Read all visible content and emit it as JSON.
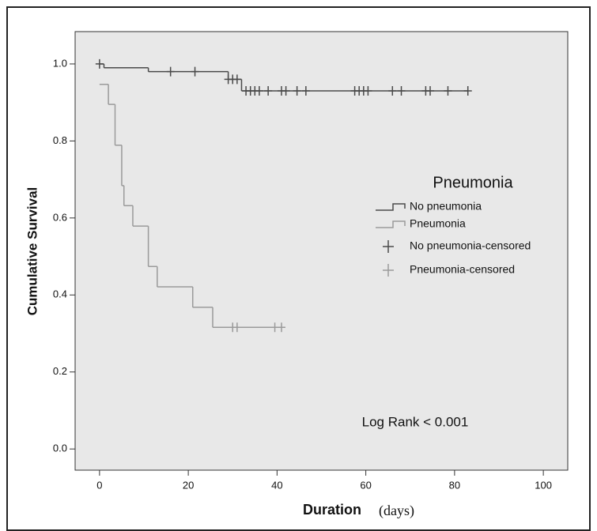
{
  "chart_data": {
    "type": "km",
    "y_label": "Cumulative Survival",
    "x_label": "Duration",
    "x_unit": "(days)",
    "legend_title": "Pneumonia",
    "annotation": "Log Rank < 0.001",
    "xlim": [
      -5.5,
      105.5
    ],
    "ylim": [
      -0.055,
      1.084
    ],
    "xticks": [
      0,
      20,
      40,
      60,
      80,
      100
    ],
    "yticks": [
      {
        "value": 0,
        "label": "0.0"
      },
      0.2,
      0.4,
      0.6,
      0.8,
      {
        "value": 1,
        "label": "1.0"
      }
    ],
    "series": [
      {
        "name": "No pneumonia",
        "color": "#4a4a4a",
        "x": [
          0,
          1,
          11,
          29,
          32,
          83
        ],
        "values": [
          1.0,
          0.99,
          0.98,
          0.96,
          0.93,
          0.93
        ]
      },
      {
        "name": "Pneumonia",
        "color": "#9a9a9a",
        "x": [
          0,
          2,
          3.5,
          5,
          5.5,
          7.5,
          11,
          13,
          21,
          25.5,
          41
        ],
        "values": [
          0.947,
          0.895,
          0.789,
          0.684,
          0.632,
          0.579,
          0.474,
          0.421,
          0.368,
          0.316,
          0.316
        ]
      }
    ],
    "censored": [
      {
        "name": "No pneumonia-censored",
        "color": "#4a4a4a",
        "x": [
          0,
          16,
          21.5,
          29,
          30,
          31,
          33,
          34,
          35,
          36,
          38,
          41,
          42,
          44.5,
          46.5,
          57.5,
          58.5,
          59.5,
          60.5,
          66,
          68,
          73.5,
          74.5,
          78.5,
          83
        ],
        "values": [
          1.0,
          0.98,
          0.98,
          0.96,
          0.96,
          0.96,
          0.93,
          0.93,
          0.93,
          0.93,
          0.93,
          0.93,
          0.93,
          0.93,
          0.93,
          0.93,
          0.93,
          0.93,
          0.93,
          0.93,
          0.93,
          0.93,
          0.93,
          0.93,
          0.93
        ]
      },
      {
        "name": "Pneumonia-censored",
        "color": "#9a9a9a",
        "x": [
          30,
          31,
          39.5,
          41
        ],
        "values": [
          0.316,
          0.316,
          0.316,
          0.316
        ]
      }
    ]
  }
}
